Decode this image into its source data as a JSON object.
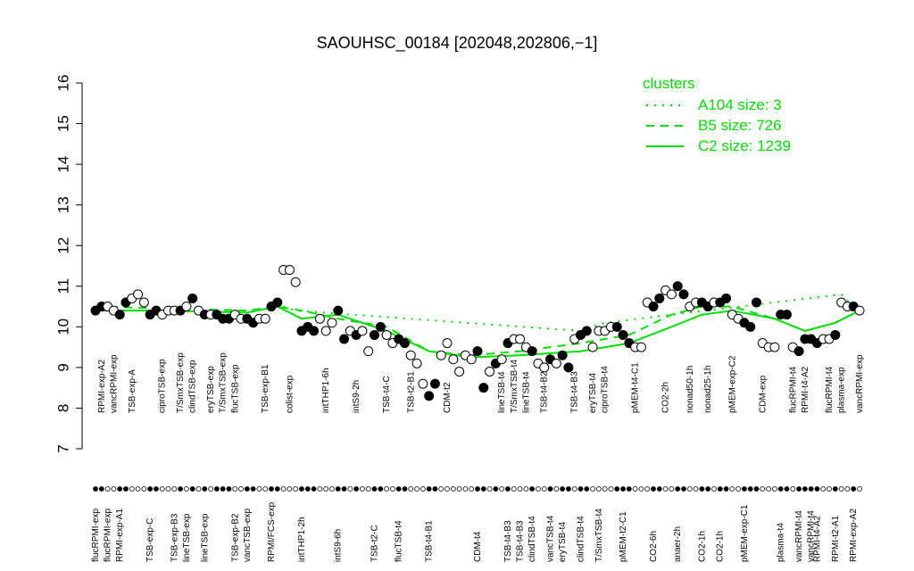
{
  "chart_data": {
    "type": "scatter",
    "title": "SAOUHSC_00184 [202048,202806,−1]",
    "ylim": [
      7,
      16
    ],
    "yticks": [
      7,
      8,
      9,
      10,
      11,
      12,
      13,
      14,
      15,
      16
    ],
    "xlim": [
      0,
      126
    ],
    "values": [
      10.4,
      10.5,
      10.5,
      10.4,
      10.3,
      10.6,
      10.7,
      10.8,
      10.6,
      10.3,
      10.4,
      10.3,
      10.4,
      10.4,
      10.4,
      10.5,
      10.7,
      10.4,
      10.3,
      10.3,
      10.3,
      10.2,
      10.2,
      10.3,
      10.2,
      10.2,
      10.1,
      10.2,
      10.2,
      10.5,
      10.6,
      11.4,
      11.4,
      11.1,
      9.9,
      10.0,
      9.9,
      10.2,
      9.9,
      10.1,
      10.4,
      9.7,
      9.9,
      9.8,
      9.9,
      9.4,
      9.8,
      10.0,
      9.8,
      9.6,
      9.7,
      9.6,
      9.3,
      9.1,
      8.6,
      8.3,
      8.6,
      9.3,
      9.6,
      9.2,
      8.9,
      9.3,
      9.2,
      9.4,
      8.5,
      8.9,
      9.1,
      9.2,
      9.6,
      9.7,
      9.7,
      9.5,
      9.4,
      9.1,
      9.0,
      9.2,
      9.1,
      9.3,
      9.0,
      9.7,
      9.8,
      9.9,
      9.5,
      9.9,
      9.9,
      10.0,
      10.0,
      9.8,
      9.6,
      9.5,
      9.5,
      10.6,
      10.5,
      10.7,
      10.9,
      10.8,
      11.0,
      10.8,
      10.5,
      10.6,
      10.6,
      10.5,
      10.6,
      10.6,
      10.7,
      10.3,
      10.2,
      10.1,
      10.0,
      10.6,
      9.6,
      9.5,
      9.5,
      10.3,
      10.3,
      9.5,
      9.4,
      9.7,
      9.7,
      9.6,
      9.7,
      9.7,
      9.8,
      10.6,
      10.5,
      10.5,
      10.4
    ],
    "point_colors": [
      "#000",
      "#000",
      "#fff",
      "#fff",
      "#000",
      "#000",
      "#fff",
      "#fff",
      "#fff",
      "#000",
      "#000",
      "#fff",
      "#fff",
      "#fff",
      "#000",
      "#fff",
      "#000",
      "#fff",
      "#000",
      "#fff",
      "#000",
      "#000",
      "#000",
      "#fff",
      "#fff",
      "#000",
      "#000",
      "#fff",
      "#fff",
      "#000",
      "#000",
      "#fff",
      "#fff",
      "#fff",
      "#000",
      "#000",
      "#000",
      "#fff",
      "#fff",
      "#fff",
      "#000",
      "#000",
      "#fff",
      "#000",
      "#fff",
      "#fff",
      "#000",
      "#000",
      "#fff",
      "#fff",
      "#000",
      "#000",
      "#fff",
      "#fff",
      "#fff",
      "#000",
      "#000",
      "#fff",
      "#fff",
      "#fff",
      "#fff",
      "#fff",
      "#fff",
      "#000",
      "#000",
      "#fff",
      "#000",
      "#fff",
      "#000",
      "#fff",
      "#fff",
      "#fff",
      "#000",
      "#fff",
      "#fff",
      "#000",
      "#fff",
      "#000",
      "#000",
      "#fff",
      "#000",
      "#000",
      "#fff",
      "#fff",
      "#fff",
      "#fff",
      "#000",
      "#000",
      "#000",
      "#fff",
      "#fff",
      "#fff",
      "#000",
      "#000",
      "#fff",
      "#fff",
      "#000",
      "#000",
      "#fff",
      "#fff",
      "#000",
      "#000",
      "#fff",
      "#000",
      "#000",
      "#fff",
      "#fff",
      "#000",
      "#000",
      "#000",
      "#fff",
      "#fff",
      "#fff",
      "#000",
      "#000",
      "#fff",
      "#000",
      "#000",
      "#000",
      "#000",
      "#fff",
      "#fff",
      "#000",
      "#fff",
      "#fff",
      "#000",
      "#fff"
    ],
    "top_labels": {
      "x": [
        1,
        3,
        6,
        11,
        14,
        16,
        19,
        21,
        23,
        28,
        32,
        38,
        43,
        48,
        52,
        58,
        67,
        69,
        71,
        74,
        79,
        82,
        84,
        89,
        94,
        98,
        101,
        105,
        110,
        115,
        117,
        121,
        123,
        126
      ],
      "labels": [
        "RPMI-exp-A2",
        "vancRPMI-exp",
        "TSB-exp-A",
        "ciproTSB-exp",
        "T/SmxTSB-exp",
        "clindTSB-exp",
        "eryTSB-exp",
        "T/SmxTSB-exp",
        "flucTSB-exp",
        "TSB-exp-B1",
        "colist-exp",
        "intTHP1-6h",
        "intS9-2h",
        "TSB-t4-C",
        "TSB-t2-B1",
        "CDM-t2",
        "lineTSB-t4",
        "T/SmxTSB-t4",
        "lineTSB-t4",
        "TSB-t4-B2",
        "TSB-t4-B3",
        "eryTSB-t4",
        "ciproTSB-t4",
        "pMEM-t4-C1",
        "CO2-2h",
        "nonad50-1h",
        "nonad25-1h",
        "pMEM-exp-C2",
        "CDM-exp",
        "flucRPMI-t4",
        "RPMI-t4-A2",
        "flucRPMI-t4",
        "plasma-exp",
        "vancRPMI-exp"
      ]
    },
    "bottom_labels": {
      "x": [
        0,
        2,
        4,
        9,
        13,
        15,
        18,
        23,
        25,
        29,
        34,
        40,
        46,
        50,
        55,
        63,
        68,
        70,
        72,
        75,
        77,
        80,
        83,
        87,
        92,
        96,
        100,
        103,
        107,
        113,
        116,
        118,
        119,
        122,
        125
      ],
      "labels": [
        "flucRPMI-exp",
        "flucRPMI-exp",
        "RPMI-exp-A1",
        "TSB-exp-C",
        "TSB-exp-B3",
        "lineTSB-exp",
        "lineTSB-exp",
        "TSB-exp-B2",
        "vancTSB-exp",
        "RPMI/FCS-exp",
        "intTHP1-2h",
        "intS9-6h",
        "TSB-t2-C",
        "flucTSB-t4",
        "TSB-t4-B1",
        "CDM-t4",
        "TSB-t4-B3",
        "TSB-t4-B3",
        "clindTSB-t4",
        "vancTSB-t4",
        "eryTSB-t4",
        "clindTSB-t4",
        "T/SmxTSB-t4",
        "pMEM-t2-C1",
        "CO2-6h",
        "anaer-2h",
        "CO2-1h",
        "CO2-1h",
        "pMEM-exp-C1",
        "plasma-t4",
        "vancRPMI-t4",
        "vancRPMI-t4",
        "RPMI-t4-A2",
        "RPMI-t2-A1",
        "RPMI-exp-A2"
      ]
    },
    "legend_title": "clusters",
    "legend_position": "top-right",
    "series": [
      {
        "name": "A104 size: 3",
        "color": "#00e000",
        "style": "dotted",
        "x": [
          31,
          33,
          80,
          84,
          123,
          125
        ],
        "values": [
          10.5,
          10.4,
          9.9,
          10.1,
          10.8,
          10.5
        ]
      },
      {
        "name": "B5 size: 726",
        "color": "#00e000",
        "style": "dashed",
        "x": [
          0,
          12,
          25,
          30,
          34,
          40,
          48,
          55,
          62,
          70,
          80,
          88,
          95,
          100,
          105,
          112,
          117,
          122,
          126
        ],
        "values": [
          10.5,
          10.45,
          10.4,
          10.5,
          10.4,
          10.2,
          10.0,
          9.4,
          9.3,
          9.4,
          9.6,
          9.8,
          10.3,
          10.5,
          10.5,
          10.2,
          9.9,
          10.1,
          10.4
        ]
      },
      {
        "name": "C2 size: 1239",
        "color": "#00e000",
        "style": "solid",
        "x": [
          0,
          12,
          25,
          30,
          34,
          40,
          48,
          55,
          62,
          70,
          80,
          88,
          95,
          100,
          105,
          112,
          117,
          122,
          126
        ],
        "values": [
          10.4,
          10.4,
          10.35,
          10.5,
          10.2,
          10.3,
          9.9,
          9.4,
          9.25,
          9.3,
          9.4,
          9.6,
          10.0,
          10.3,
          10.4,
          10.2,
          9.9,
          10.1,
          10.4
        ]
      }
    ]
  }
}
